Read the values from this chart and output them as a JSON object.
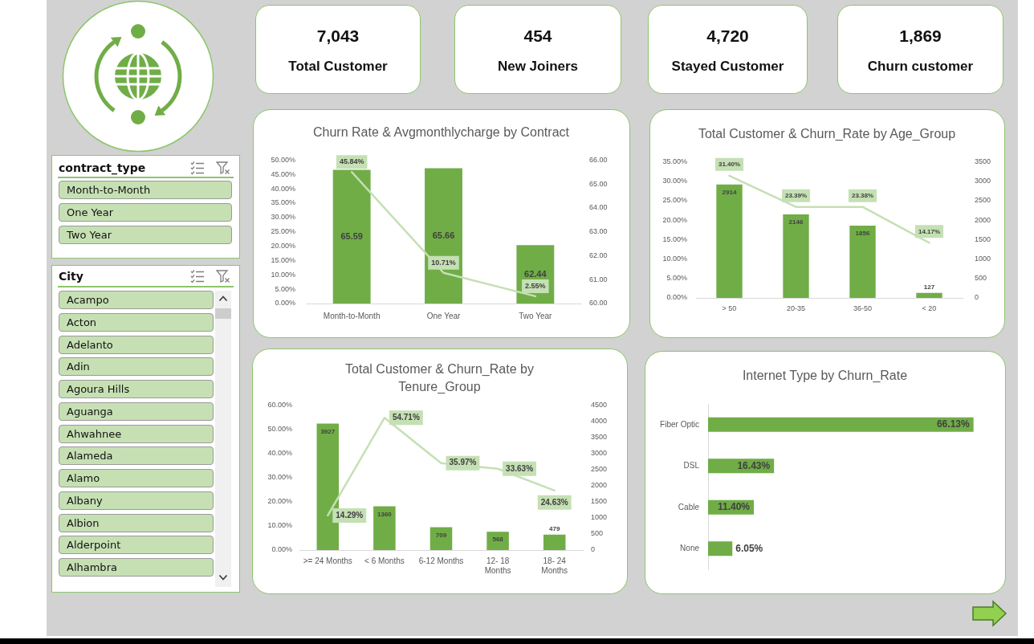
{
  "chart_data": [
    {
      "type": "other",
      "categories": [
        "Total Customer",
        "New Joiners",
        "Stayed Customer",
        "Churn customer"
      ],
      "values": [
        7043,
        454,
        4720,
        1869
      ],
      "value_labels": [
        "7,043",
        "454",
        "4,720",
        "1,869"
      ]
    },
    {
      "type": "other",
      "title": "contract_type",
      "categories": [
        "Month-to-Month",
        "One Year",
        "Two Year"
      ]
    },
    {
      "type": "other",
      "title": "City",
      "categories": [
        "Acampo",
        "Acton",
        "Adelanto",
        "Adin",
        "Agoura Hills",
        "Aguanga",
        "Ahwahnee",
        "Alameda",
        "Alamo",
        "Albany",
        "Albion",
        "Alderpoint",
        "Alhambra"
      ]
    },
    {
      "type": "bar",
      "title": "Churn Rate & Avgmonthlycharge by Contract",
      "categories": [
        "Month-to-Month",
        "One Year",
        "Two Year"
      ],
      "series": [
        {
          "type": "bar",
          "axis": "y2",
          "color": "#70ad47",
          "values": [
            65.59,
            65.66,
            62.44
          ],
          "value_labels": [
            "65.59",
            "65.66",
            "62.44"
          ]
        },
        {
          "type": "line",
          "color": "#c5e0b4",
          "values": [
            45.84,
            10.71,
            2.55
          ],
          "value_labels": [
            "45.84%",
            "10.71%",
            "2.55%"
          ]
        }
      ],
      "ylim": [
        0,
        50
      ],
      "yticks": [
        {
          "value": 0,
          "label": "0.00%"
        },
        {
          "value": 5,
          "label": "5.00%"
        },
        {
          "value": 10,
          "label": "10.00%"
        },
        {
          "value": 15,
          "label": "15.00%"
        },
        {
          "value": 20,
          "label": "20.00%"
        },
        {
          "value": 25,
          "label": "25.00%"
        },
        {
          "value": 30,
          "label": "30.00%"
        },
        {
          "value": 35,
          "label": "35.00%"
        },
        {
          "value": 40,
          "label": "40.00%"
        },
        {
          "value": 45,
          "label": "45.00%"
        },
        {
          "value": 50,
          "label": "50.00%"
        }
      ],
      "y2lim": [
        60,
        66
      ],
      "y2ticks": [
        {
          "value": 60,
          "label": "60.00"
        },
        {
          "value": 61,
          "label": "61.00"
        },
        {
          "value": 62,
          "label": "62.00"
        },
        {
          "value": 63,
          "label": "63.00"
        },
        {
          "value": 64,
          "label": "64.00"
        },
        {
          "value": 65,
          "label": "65.00"
        },
        {
          "value": 66,
          "label": "66.00"
        }
      ]
    },
    {
      "type": "bar",
      "title": "Total Customer & Churn_Rate by Age_Group",
      "categories": [
        "> 50",
        "20-35",
        "36-50",
        "< 20"
      ],
      "series": [
        {
          "type": "bar",
          "axis": "y2",
          "color": "#70ad47",
          "values": [
            2914,
            2146,
            1856,
            127
          ],
          "value_labels": [
            "2914",
            "2146",
            "1856",
            "127"
          ]
        },
        {
          "type": "line",
          "color": "#c5e0b4",
          "values": [
            31.4,
            23.39,
            23.38,
            14.17
          ],
          "value_labels": [
            "31.40%",
            "23.39%",
            "23.38%",
            "14.17%"
          ]
        }
      ],
      "ylim": [
        0,
        35
      ],
      "yticks": [
        {
          "value": 0,
          "label": "0.00%"
        },
        {
          "value": 5,
          "label": "5.00%"
        },
        {
          "value": 10,
          "label": "10.00%"
        },
        {
          "value": 15,
          "label": "15.00%"
        },
        {
          "value": 20,
          "label": "20.00%"
        },
        {
          "value": 25,
          "label": "25.00%"
        },
        {
          "value": 30,
          "label": "30.00%"
        },
        {
          "value": 35,
          "label": "35.00%"
        }
      ],
      "y2lim": [
        0,
        3500
      ],
      "y2ticks": [
        0,
        500,
        1000,
        1500,
        2000,
        2500,
        3000,
        3500
      ]
    },
    {
      "type": "bar",
      "title": "Total Customer & Churn_Rate by Tenure_Group",
      "categories": [
        ">= 24 Months",
        "< 6 Months",
        "6-12 Months",
        "12- 18 Months",
        "18- 24 Months"
      ],
      "series": [
        {
          "type": "bar",
          "axis": "y2",
          "color": "#70ad47",
          "values": [
            3927,
            1360,
            709,
            568,
            479
          ],
          "value_labels": [
            "3927",
            "1360",
            "709",
            "568",
            "479"
          ]
        },
        {
          "type": "line",
          "color": "#c5e0b4",
          "values": [
            14.29,
            54.71,
            35.97,
            33.63,
            24.63
          ],
          "value_labels": [
            "14.29%",
            "54.71%",
            "35.97%",
            "33.63%",
            "24.63%"
          ]
        }
      ],
      "ylim": [
        0,
        60
      ],
      "yticks": [
        {
          "value": 0,
          "label": "0.00%"
        },
        {
          "value": 10,
          "label": "10.00%"
        },
        {
          "value": 20,
          "label": "20.00%"
        },
        {
          "value": 30,
          "label": "30.00%"
        },
        {
          "value": 40,
          "label": "40.00%"
        },
        {
          "value": 50,
          "label": "50.00%"
        },
        {
          "value": 60,
          "label": "60.00%"
        }
      ],
      "y2lim": [
        0,
        4500
      ],
      "y2ticks": [
        0,
        500,
        1000,
        1500,
        2000,
        2500,
        3000,
        3500,
        4000,
        4500
      ]
    },
    {
      "type": "bar",
      "orientation": "horizontal",
      "title": "Internet Type by Churn_Rate",
      "categories": [
        "Fiber Optic",
        "DSL",
        "Cable",
        "None"
      ],
      "values": [
        66.13,
        16.43,
        11.4,
        6.05
      ],
      "color": "#70ad47",
      "value_labels": [
        "66.13%",
        "16.43%",
        "11.40%",
        "6.05%"
      ]
    }
  ]
}
